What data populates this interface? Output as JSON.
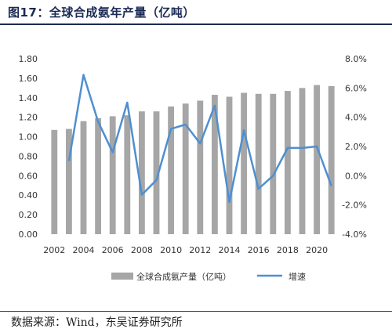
{
  "title": "图17：全球合成氨年产量（亿吨）",
  "source": "数据来源：Wind，东吴证券研究所",
  "chart_data": {
    "type": "bar+line",
    "x": [
      2002,
      2003,
      2004,
      2005,
      2006,
      2007,
      2008,
      2009,
      2010,
      2011,
      2012,
      2013,
      2014,
      2015,
      2016,
      2017,
      2018,
      2019,
      2020,
      2021
    ],
    "x_tick_labels": [
      "2002",
      "2004",
      "2006",
      "2008",
      "2010",
      "2012",
      "2014",
      "2016",
      "2018",
      "2020"
    ],
    "series": [
      {
        "name": "全球合成氨产量（亿吨）",
        "type": "bar",
        "axis": "left",
        "color": "#a6a6a6",
        "values": [
          1.07,
          1.08,
          1.16,
          1.19,
          1.21,
          1.22,
          1.26,
          1.26,
          1.31,
          1.34,
          1.37,
          1.43,
          1.41,
          1.45,
          1.44,
          1.44,
          1.47,
          1.5,
          1.53,
          1.52
        ]
      },
      {
        "name": "增速",
        "type": "line",
        "axis": "right",
        "color": "#4f8fd0",
        "values": [
          null,
          1.0,
          6.9,
          3.7,
          1.6,
          5.0,
          -1.3,
          -0.3,
          3.2,
          3.5,
          2.2,
          4.8,
          -1.8,
          3.1,
          -0.9,
          0.0,
          1.9,
          1.9,
          2.0,
          -0.7
        ]
      }
    ],
    "left_axis": {
      "ylim": [
        0,
        1.8
      ],
      "ticks": [
        0.0,
        0.2,
        0.4,
        0.6,
        0.8,
        1.0,
        1.2,
        1.4,
        1.6,
        1.8
      ]
    },
    "right_axis": {
      "ylim": [
        -4.0,
        8.0
      ],
      "ticks": [
        -4.0,
        -2.0,
        0.0,
        2.0,
        4.0,
        6.0,
        8.0
      ],
      "unit": "%"
    },
    "legend": {
      "position": "bottom",
      "items": [
        "全球合成氨产量（亿吨）",
        "增速"
      ]
    },
    "grid": false
  }
}
